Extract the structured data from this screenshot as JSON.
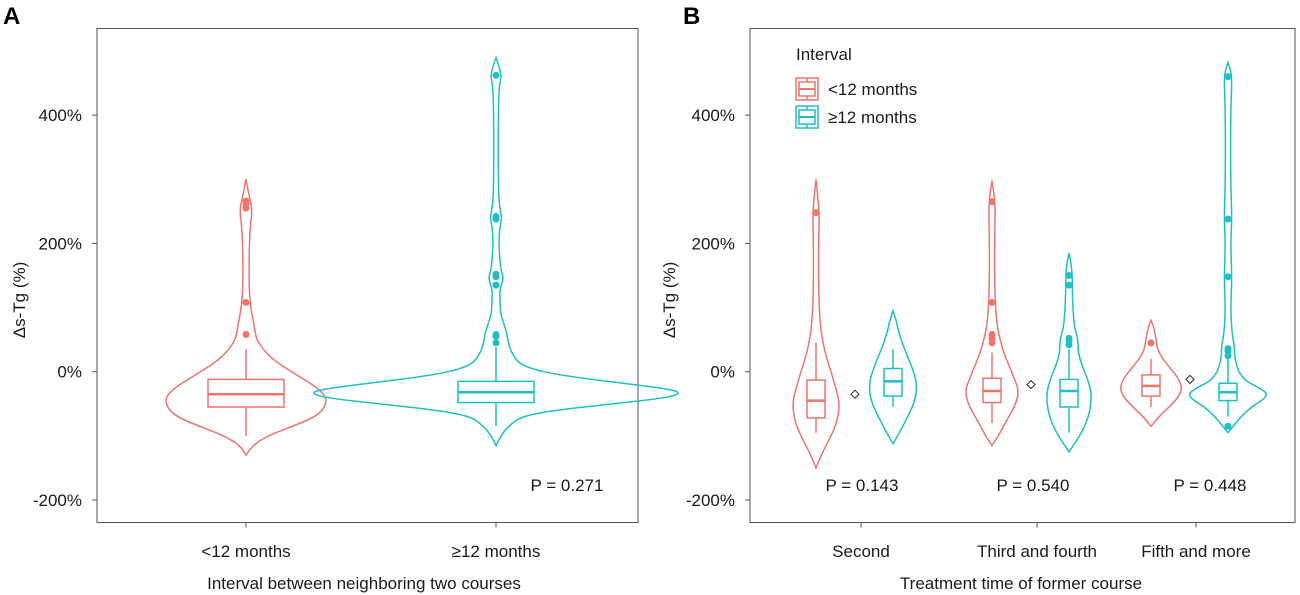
{
  "colors": {
    "group1": "#F0736C",
    "group2": "#20BFC4"
  },
  "panel_a": {
    "letter": "A",
    "xlabel": "Interval between neighboring two courses",
    "ylabel": "Δs-Tg (%)",
    "pvalue": "P = 0.271"
  },
  "panel_b": {
    "letter": "B",
    "xlabel": "Treatment time of former course",
    "ylabel": "Δs-Tg (%)",
    "pvalues": [
      "P = 0.143",
      "P = 0.540",
      "P = 0.448"
    ]
  },
  "legend": {
    "title": "Interval",
    "items": [
      {
        "label": "<12 months",
        "color_key": "group1"
      },
      {
        "label": "≥12 months",
        "color_key": "group2"
      }
    ]
  },
  "chart_data": [
    {
      "type": "violin",
      "panel": "A",
      "title": "",
      "xlabel": "Interval between neighboring two courses",
      "ylabel": "Δs-Tg (%)",
      "ylim": [
        -235,
        535
      ],
      "yticks": [
        -200,
        0,
        200,
        400
      ],
      "ytick_labels": [
        "-200%",
        "0%",
        "200%",
        "400%"
      ],
      "categories": [
        "<12 months",
        "≥12 months"
      ],
      "series": [
        {
          "name": "<12 months",
          "color_key": "group1",
          "box": {
            "q1": -55,
            "median": -35,
            "q3": -12,
            "whisker_low": -100,
            "whisker_high": 35
          },
          "range": [
            -130,
            300
          ],
          "density": [
            [
              -130,
              0
            ],
            [
              -115,
              4
            ],
            [
              -100,
              14
            ],
            [
              -85,
              30
            ],
            [
              -70,
              45
            ],
            [
              -55,
              51
            ],
            [
              -40,
              52
            ],
            [
              -25,
              46
            ],
            [
              -10,
              36
            ],
            [
              5,
              26
            ],
            [
              20,
              17
            ],
            [
              35,
              11
            ],
            [
              50,
              7
            ],
            [
              60,
              6
            ],
            [
              75,
              5
            ],
            [
              100,
              3
            ],
            [
              130,
              2
            ],
            [
              180,
              2
            ],
            [
              220,
              2.5
            ],
            [
              250,
              4
            ],
            [
              265,
              3
            ],
            [
              280,
              1.5
            ],
            [
              300,
              0
            ]
          ],
          "outliers": [
            58,
            108,
            255,
            262,
            266
          ]
        },
        {
          "name": "≥12 months",
          "color_key": "group2",
          "box": {
            "q1": -48,
            "median": -32,
            "q3": -15,
            "whisker_low": -85,
            "whisker_high": 38
          },
          "range": [
            -115,
            490
          ],
          "density": [
            [
              -115,
              0
            ],
            [
              -100,
              3
            ],
            [
              -85,
              8
            ],
            [
              -70,
              16
            ],
            [
              -60,
              38
            ],
            [
              -50,
              76
            ],
            [
              -40,
              112
            ],
            [
              -32,
              120
            ],
            [
              -25,
              106
            ],
            [
              -15,
              72
            ],
            [
              -5,
              40
            ],
            [
              5,
              22
            ],
            [
              15,
              14
            ],
            [
              30,
              10
            ],
            [
              45,
              8
            ],
            [
              60,
              7
            ],
            [
              75,
              5
            ],
            [
              90,
              3
            ],
            [
              110,
              2.5
            ],
            [
              130,
              2.5
            ],
            [
              145,
              5
            ],
            [
              160,
              3
            ],
            [
              190,
              2
            ],
            [
              220,
              2
            ],
            [
              240,
              4
            ],
            [
              260,
              2
            ],
            [
              300,
              1.5
            ],
            [
              400,
              1.5
            ],
            [
              445,
              2
            ],
            [
              460,
              3.5
            ],
            [
              475,
              2
            ],
            [
              490,
              0
            ]
          ],
          "outliers": [
            45,
            55,
            58,
            135,
            148,
            152,
            238,
            242,
            462
          ]
        }
      ],
      "annotations": [
        "P = 0.271"
      ]
    },
    {
      "type": "violin",
      "panel": "B",
      "title": "",
      "xlabel": "Treatment time of former course",
      "ylabel": "Δs-Tg (%)",
      "ylim": [
        -235,
        535
      ],
      "yticks": [
        -200,
        0,
        200,
        400
      ],
      "ytick_labels": [
        "-200%",
        "0%",
        "200%",
        "400%"
      ],
      "categories": [
        "Second",
        "Third and fourth",
        "Fifth and more"
      ],
      "legend": {
        "title": "Interval",
        "entries": [
          "<12 months",
          "≥12 months"
        ],
        "position": "top-left"
      },
      "series": [
        {
          "name": "<12 months",
          "color_key": "group1",
          "groups": [
            {
              "category": "Second",
              "box": {
                "q1": -72,
                "median": -45,
                "q3": -13,
                "whisker_low": -95,
                "whisker_high": 45
              },
              "range": [
                -150,
                300
              ],
              "density": [
                [
                  -150,
                  0
                ],
                [
                  -130,
                  4
                ],
                [
                  -110,
                  9
                ],
                [
                  -90,
                  14
                ],
                [
                  -70,
                  17
                ],
                [
                  -50,
                  18
                ],
                [
                  -30,
                  16
                ],
                [
                  -10,
                  13
                ],
                [
                  10,
                  10
                ],
                [
                  30,
                  7
                ],
                [
                  50,
                  5
                ],
                [
                  70,
                  3.5
                ],
                [
                  100,
                  2.5
                ],
                [
                  140,
                  2
                ],
                [
                  200,
                  2
                ],
                [
                  240,
                  2.5
                ],
                [
                  260,
                  2
                ],
                [
                  300,
                  0
                ]
              ],
              "outliers": [
                248
              ]
            },
            {
              "category": "Third and fourth",
              "box": {
                "q1": -48,
                "median": -30,
                "q3": -10,
                "whisker_low": -80,
                "whisker_high": 30
              },
              "range": [
                -115,
                298
              ],
              "density": [
                [
                  -115,
                  0
                ],
                [
                  -100,
                  5
                ],
                [
                  -80,
                  10
                ],
                [
                  -60,
                  16
                ],
                [
                  -40,
                  20
                ],
                [
                  -25,
                  20
                ],
                [
                  -10,
                  17
                ],
                [
                  10,
                  13
                ],
                [
                  30,
                  9
                ],
                [
                  45,
                  7
                ],
                [
                  60,
                  5
                ],
                [
                  80,
                  3.5
                ],
                [
                  110,
                  2.5
                ],
                [
                  150,
                  2
                ],
                [
                  200,
                  2
                ],
                [
                  250,
                  2.5
                ],
                [
                  270,
                  2
                ],
                [
                  298,
                  0
                ]
              ],
              "outliers": [
                45,
                52,
                58,
                108,
                265
              ]
            },
            {
              "category": "Fifth and more",
              "box": {
                "q1": -38,
                "median": -22,
                "q3": -5,
                "whisker_low": -55,
                "whisker_high": 20
              },
              "range": [
                -85,
                80
              ],
              "density": [
                [
                  -85,
                  0
                ],
                [
                  -70,
                  6
                ],
                [
                  -55,
                  14
                ],
                [
                  -40,
                  21
                ],
                [
                  -25,
                  24
                ],
                [
                  -10,
                  21
                ],
                [
                  5,
                  15
                ],
                [
                  20,
                  9
                ],
                [
                  35,
                  5
                ],
                [
                  50,
                  4
                ],
                [
                  60,
                  3
                ],
                [
                  70,
                  2
                ],
                [
                  80,
                  0
                ]
              ],
              "outliers": [
                45
              ]
            }
          ]
        },
        {
          "name": "≥12 months",
          "color_key": "group2",
          "groups": [
            {
              "category": "Second",
              "box": {
                "q1": -38,
                "median": -15,
                "q3": 5,
                "whisker_low": -55,
                "whisker_high": 35
              },
              "range": [
                -112,
                95
              ],
              "density": [
                [
                  -112,
                  0
                ],
                [
                  -95,
                  5
                ],
                [
                  -75,
                  10
                ],
                [
                  -55,
                  15
                ],
                [
                  -35,
                  18
                ],
                [
                  -15,
                  18
                ],
                [
                  5,
                  15
                ],
                [
                  25,
                  11
                ],
                [
                  45,
                  7
                ],
                [
                  65,
                  4
                ],
                [
                  80,
                  2.5
                ],
                [
                  95,
                  0
                ]
              ],
              "outliers": []
            },
            {
              "category": "Third and fourth",
              "box": {
                "q1": -55,
                "median": -30,
                "q3": -12,
                "whisker_low": -95,
                "whisker_high": 35
              },
              "range": [
                -125,
                185
              ],
              "density": [
                [
                  -125,
                  0
                ],
                [
                  -110,
                  5
                ],
                [
                  -90,
                  11
                ],
                [
                  -70,
                  15
                ],
                [
                  -50,
                  17
                ],
                [
                  -30,
                  17
                ],
                [
                  -10,
                  14
                ],
                [
                  10,
                  10
                ],
                [
                  30,
                  7
                ],
                [
                  50,
                  7
                ],
                [
                  70,
                  4
                ],
                [
                  100,
                  3
                ],
                [
                  130,
                  2.5
                ],
                [
                  150,
                  2.5
                ],
                [
                  170,
                  1.5
                ],
                [
                  185,
                  0
                ]
              ],
              "outliers": [
                42,
                48,
                52,
                135,
                150
              ]
            },
            {
              "category": "Fifth and more",
              "box": {
                "q1": -45,
                "median": -32,
                "q3": -18,
                "whisker_low": -70,
                "whisker_high": 20
              },
              "range": [
                -95,
                482
              ],
              "density": [
                [
                  -95,
                  0
                ],
                [
                  -85,
                  4
                ],
                [
                  -70,
                  10
                ],
                [
                  -55,
                  18
                ],
                [
                  -45,
                  26
                ],
                [
                  -35,
                  31
                ],
                [
                  -25,
                  24
                ],
                [
                  -15,
                  14
                ],
                [
                  0,
                  8
                ],
                [
                  15,
                  6
                ],
                [
                  25,
                  5
                ],
                [
                  40,
                  5
                ],
                [
                  60,
                  3
                ],
                [
                  100,
                  2
                ],
                [
                  145,
                  3
                ],
                [
                  200,
                  2
                ],
                [
                  240,
                  3
                ],
                [
                  300,
                  2
                ],
                [
                  400,
                  2
                ],
                [
                  455,
                  3
                ],
                [
                  470,
                  2
                ],
                [
                  482,
                  0
                ]
              ],
              "outliers": [
                -85,
                25,
                32,
                36,
                148,
                238,
                460
              ]
            }
          ]
        }
      ],
      "means": [
        {
          "category": "Second",
          "value": -35
        },
        {
          "category": "Third and fourth",
          "value": -20
        },
        {
          "category": "Fifth and more",
          "value": -12
        }
      ],
      "annotations": [
        "P = 0.143",
        "P = 0.540",
        "P = 0.448"
      ]
    }
  ]
}
